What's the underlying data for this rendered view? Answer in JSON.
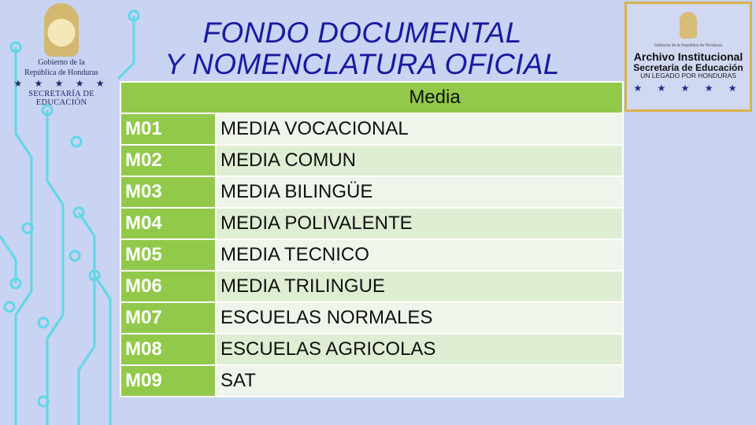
{
  "title": {
    "line1": "FONDO DOCUMENTAL",
    "line2": "Y NOMENCLATURA OFICIAL"
  },
  "logo_left": {
    "line1": "Gobierno de la",
    "line2": "República de Honduras",
    "stars": "★ ★ ★ ★ ★",
    "dept": "SECRETARÍA DE EDUCACIÓN"
  },
  "logo_right": {
    "gov": "Gobierno de la República de Honduras",
    "line1": "Archivo Institucional",
    "line2": "Secretaría de Educación",
    "line3": "UN LEGADO POR HONDURAS",
    "stars": "★ ★ ★ ★ ★"
  },
  "table": {
    "header": "Media",
    "rows": [
      {
        "code": "M01",
        "name": "MEDIA VOCACIONAL"
      },
      {
        "code": "M02",
        "name": "MEDIA COMUN"
      },
      {
        "code": "M03",
        "name": "MEDIA BILINGÜE"
      },
      {
        "code": "M04",
        "name": "MEDIA POLIVALENTE"
      },
      {
        "code": "M05",
        "name": "MEDIA TECNICO"
      },
      {
        "code": "M06",
        "name": "MEDIA TRILINGUE"
      },
      {
        "code": "M07",
        "name": "ESCUELAS NORMALES"
      },
      {
        "code": "M08",
        "name": "ESCUELAS AGRICOLAS"
      },
      {
        "code": "M09",
        "name": "SAT"
      }
    ]
  },
  "colors": {
    "header_green": "#92c94a",
    "title_blue": "#1a1aa0",
    "circuit": "#5fd8e8"
  }
}
